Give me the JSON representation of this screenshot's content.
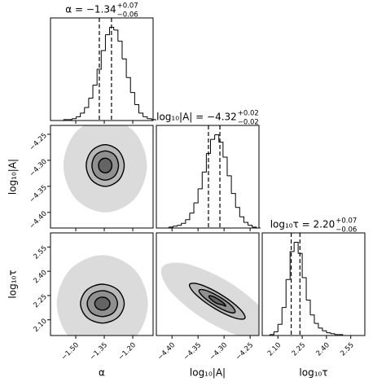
{
  "chart_data": {
    "type": "corner",
    "color": "#000000",
    "cloud_color": "#b0b0b0",
    "hist_ylim": [
      0,
      110
    ],
    "params": [
      {
        "name": "α",
        "title": "α = −1.34",
        "title_sup": "+0.07",
        "title_sub": "−0.06",
        "lim": [
          -1.633,
          -1.093
        ],
        "ticks": [
          {
            "value": -1.5,
            "label": "−1.50"
          },
          {
            "value": -1.35,
            "label": "−1.35"
          },
          {
            "value": -1.2,
            "label": "−1.20"
          }
        ],
        "bins": [
          -1.63,
          -1.608,
          -1.586,
          -1.564,
          -1.542,
          -1.52,
          -1.498,
          -1.476,
          -1.454,
          -1.432,
          -1.41,
          -1.388,
          -1.366,
          -1.344,
          -1.322,
          -1.3,
          -1.278,
          -1.256,
          -1.234,
          -1.212,
          -1.19,
          -1.168,
          -1.146,
          -1.124,
          -1.102,
          -1.08
        ],
        "counts": [
          0,
          0,
          0,
          1,
          1,
          2,
          4,
          8,
          14,
          24,
          38,
          55,
          75,
          92,
          100,
          97,
          85,
          66,
          46,
          30,
          17,
          8,
          4,
          2,
          1
        ],
        "quantiles": [
          -1.376,
          -1.312
        ]
      },
      {
        "name": "log₁₀|A|",
        "title": "log₁₀|A| = −4.32",
        "title_sup": "+0.02",
        "title_sub": "−0.02",
        "lim": [
          -4.43,
          -4.233
        ],
        "ticks": [
          {
            "value": -4.4,
            "label": "−4.40"
          },
          {
            "value": -4.35,
            "label": "−4.35"
          },
          {
            "value": -4.3,
            "label": "−4.30"
          },
          {
            "value": -4.25,
            "label": "−4.25"
          }
        ],
        "bins": [
          -4.43,
          -4.422,
          -4.414,
          -4.406,
          -4.398,
          -4.39,
          -4.382,
          -4.374,
          -4.366,
          -4.358,
          -4.35,
          -4.342,
          -4.334,
          -4.326,
          -4.318,
          -4.31,
          -4.302,
          -4.294,
          -4.286,
          -4.278,
          -4.27,
          -4.262,
          -4.254,
          -4.246,
          -4.238,
          -4.23
        ],
        "counts": [
          0,
          0,
          0,
          1,
          2,
          3,
          5,
          9,
          16,
          27,
          42,
          60,
          80,
          95,
          100,
          92,
          76,
          56,
          37,
          22,
          12,
          6,
          3,
          1,
          0
        ],
        "quantiles": [
          -4.33,
          -4.308
        ]
      },
      {
        "name": "log₁₀τ",
        "title": "log₁₀τ = 2.20",
        "title_sup": "+0.07",
        "title_sub": "−0.06",
        "lim": [
          2.003,
          2.637
        ],
        "ticks": [
          {
            "value": 2.1,
            "label": "2.10"
          },
          {
            "value": 2.25,
            "label": "2.25"
          },
          {
            "value": 2.4,
            "label": "2.40"
          },
          {
            "value": 2.55,
            "label": "2.55"
          }
        ],
        "bins": [
          2.0,
          2.025,
          2.05,
          2.075,
          2.1,
          2.125,
          2.15,
          2.175,
          2.2,
          2.225,
          2.25,
          2.275,
          2.3,
          2.325,
          2.35,
          2.375,
          2.4,
          2.425,
          2.45,
          2.475,
          2.5,
          2.525,
          2.55,
          2.575,
          2.6,
          2.625
        ],
        "counts": [
          0,
          0,
          1,
          4,
          12,
          30,
          60,
          90,
          100,
          88,
          62,
          38,
          22,
          13,
          8,
          5,
          3,
          2,
          1,
          1,
          0,
          0,
          0,
          0,
          0
        ],
        "quantiles": [
          2.182,
          2.236
        ]
      }
    ],
    "lower": [
      [
        {
          "cloud": {
            "x": [
              -1.125,
              -1.19,
              -1.345,
              -1.5,
              -1.565,
              -1.5,
              -1.345,
              -1.19
            ],
            "y": [
              -4.31,
              -4.246,
              -4.22,
              -4.246,
              -4.31,
              -4.374,
              -4.4,
              -4.374
            ]
          },
          "contours": [
            {
              "x": [
                -1.245,
                -1.274,
                -1.345,
                -1.416,
                -1.445,
                -1.416,
                -1.345,
                -1.274
              ],
              "y": [
                -4.31,
                -4.282,
                -4.27,
                -4.282,
                -4.31,
                -4.338,
                -4.35,
                -4.338
              ]
            },
            {
              "x": [
                -1.275,
                -1.295,
                -1.345,
                -1.395,
                -1.415,
                -1.395,
                -1.345,
                -1.295
              ],
              "y": [
                -4.31,
                -4.29,
                -4.282,
                -4.29,
                -4.31,
                -4.33,
                -4.338,
                -4.33
              ]
            },
            {
              "x": [
                -1.31,
                -1.32,
                -1.345,
                -1.37,
                -1.38,
                -1.37,
                -1.345,
                -1.32
              ],
              "y": [
                -4.31,
                -4.3,
                -4.296,
                -4.3,
                -4.31,
                -4.32,
                -4.324,
                -4.32
              ]
            }
          ]
        }
      ],
      [
        {
          "cloud": {
            "x": [
              -1.12,
              -1.19,
              -1.36,
              -1.53,
              -1.6,
              -1.53,
              -1.36,
              -1.19
            ],
            "y": [
              2.2,
              2.41,
              2.5,
              2.41,
              2.2,
              1.99,
              1.95,
              1.99
            ]
          },
          "contours": [
            {
              "x": [
                -1.245,
                -1.279,
                -1.36,
                -1.441,
                -1.475,
                -1.441,
                -1.36,
                -1.279
              ],
              "y": [
                2.2,
                2.285,
                2.32,
                2.285,
                2.2,
                2.115,
                2.08,
                2.115
              ]
            },
            {
              "x": [
                -1.28,
                -1.303,
                -1.36,
                -1.417,
                -1.44,
                -1.417,
                -1.36,
                -1.303
              ],
              "y": [
                2.2,
                2.257,
                2.28,
                2.257,
                2.2,
                2.143,
                2.12,
                2.143
              ]
            },
            {
              "x": [
                -1.32,
                -1.332,
                -1.36,
                -1.388,
                -1.4,
                -1.388,
                -1.36,
                -1.332
              ],
              "y": [
                2.2,
                2.228,
                2.24,
                2.228,
                2.2,
                2.172,
                2.16,
                2.172
              ]
            }
          ]
        },
        {
          "cloud": {
            "x": [
              -4.207,
              -4.222,
              -4.29,
              -4.372,
              -4.419,
              -4.404,
              -4.336,
              -4.254
            ],
            "y": [
              2.005,
              2.15,
              2.332,
              2.446,
              2.425,
              2.28,
              2.098,
              1.984
            ]
          },
          "contours": [
            {
              "x": [
                -4.26,
                -4.27,
                -4.305,
                -4.345,
                -4.366,
                -4.356,
                -4.321,
                -4.281
              ],
              "y": [
                2.11,
                2.168,
                2.254,
                2.317,
                2.32,
                2.262,
                2.176,
                2.113
              ]
            },
            {
              "x": [
                -4.279,
                -4.285,
                -4.308,
                -4.334,
                -4.348,
                -4.341,
                -4.318,
                -4.292
              ],
              "y": [
                2.147,
                2.185,
                2.24,
                2.281,
                2.283,
                2.245,
                2.19,
                2.149
              ]
            },
            {
              "x": [
                -4.297,
                -4.3,
                -4.311,
                -4.323,
                -4.329,
                -4.326,
                -4.315,
                -4.303
              ],
              "y": [
                2.184,
                2.201,
                2.227,
                2.246,
                2.247,
                2.229,
                2.203,
                2.192
              ]
            }
          ]
        }
      ]
    ]
  }
}
